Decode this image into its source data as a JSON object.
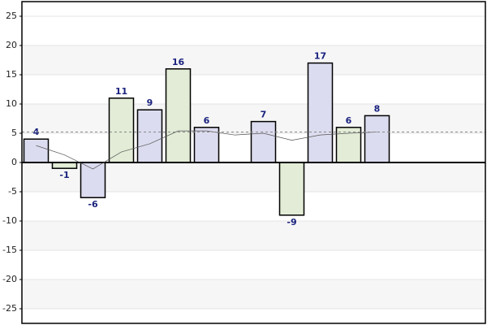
{
  "chart_data": {
    "type": "bar",
    "categories": [
      null,
      null,
      null,
      null,
      null,
      null,
      null,
      null,
      null,
      null,
      null,
      null,
      null,
      null,
      null,
      null
    ],
    "values": [
      4,
      -1,
      -6,
      11,
      9,
      16,
      6,
      null,
      7,
      -9,
      17,
      6,
      8,
      null,
      null,
      null
    ],
    "colors": [
      "#dcdcf0",
      "#e2ecd6"
    ],
    "line_values": [
      2.9,
      1.3,
      -1.1,
      1.8,
      3.2,
      5.4,
      5.4,
      4.7,
      5.0,
      3.8,
      4.7,
      5.0,
      5.2,
      null,
      null,
      null
    ],
    "average_line": 5.2,
    "ylim": [
      -27.5,
      27.5
    ],
    "yticks": [
      -25,
      -20,
      -15,
      -10,
      -5,
      0,
      5,
      10,
      15,
      20,
      25
    ],
    "grid": true
  }
}
